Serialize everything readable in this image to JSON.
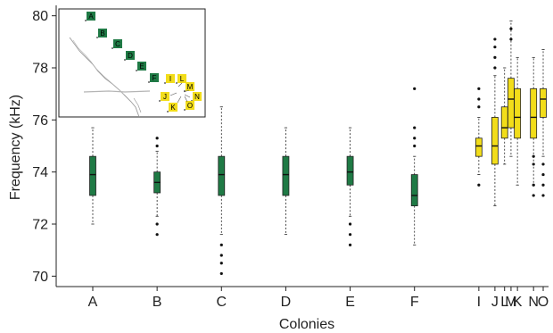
{
  "chart_data": {
    "type": "box",
    "xlabel": "Colonies",
    "ylabel": "Frequency (kHz)",
    "ylim": [
      69.6,
      80.4
    ],
    "yticks": [
      70,
      72,
      74,
      76,
      78,
      80
    ],
    "grid": false,
    "colors": {
      "green": "#1f7a45",
      "yellow": "#f2dd1a"
    },
    "categories": [
      "A",
      "B",
      "C",
      "D",
      "E",
      "F",
      "I",
      "J",
      "L",
      "M",
      "K",
      "N",
      "O"
    ],
    "x": [
      1,
      2,
      3,
      4,
      5,
      6,
      7,
      7.25,
      7.4,
      7.5,
      7.6,
      7.85,
      8
    ],
    "boxes": [
      {
        "label": "A",
        "x": 1,
        "color": "green",
        "whisker_low": 72.0,
        "q1": 73.1,
        "median": 73.9,
        "q3": 74.6,
        "whisker_high": 75.7,
        "outliers": []
      },
      {
        "label": "B",
        "x": 2,
        "color": "green",
        "whisker_low": 72.3,
        "q1": 73.2,
        "median": 73.6,
        "q3": 74.0,
        "whisker_high": 74.8,
        "outliers": [
          75.3,
          75.0,
          72.0,
          71.6
        ]
      },
      {
        "label": "C",
        "x": 3,
        "color": "green",
        "whisker_low": 71.6,
        "q1": 73.1,
        "median": 73.9,
        "q3": 74.6,
        "whisker_high": 76.5,
        "outliers": [
          71.2,
          70.8,
          70.5,
          70.1
        ]
      },
      {
        "label": "D",
        "x": 4,
        "color": "green",
        "whisker_low": 71.6,
        "q1": 73.1,
        "median": 73.9,
        "q3": 74.6,
        "whisker_high": 75.7,
        "outliers": []
      },
      {
        "label": "E",
        "x": 5,
        "color": "green",
        "whisker_low": 72.3,
        "q1": 73.5,
        "median": 74.0,
        "q3": 74.6,
        "whisker_high": 75.7,
        "outliers": [
          72.0,
          71.6,
          71.2
        ]
      },
      {
        "label": "F",
        "x": 6,
        "color": "green",
        "whisker_low": 71.2,
        "q1": 72.7,
        "median": 73.1,
        "q3": 73.9,
        "whisker_high": 74.6,
        "outliers": [
          77.2,
          75.7,
          75.3,
          75.0
        ]
      },
      {
        "label": "I",
        "x": 7,
        "color": "yellow",
        "whisker_low": 73.9,
        "q1": 74.6,
        "median": 75.0,
        "q3": 75.3,
        "whisker_high": 76.1,
        "outliers": [
          77.2,
          76.8,
          76.5,
          73.5
        ]
      },
      {
        "label": "J",
        "x": 7.25,
        "color": "yellow",
        "whisker_low": 72.7,
        "q1": 74.3,
        "median": 75.0,
        "q3": 76.1,
        "whisker_high": 77.7,
        "outliers": [
          79.1,
          78.8,
          78.4,
          78.0
        ]
      },
      {
        "label": "L",
        "x": 7.4,
        "color": "yellow",
        "whisker_low": 74.3,
        "q1": 75.3,
        "median": 75.7,
        "q3": 76.5,
        "whisker_high": 78.0,
        "outliers": []
      },
      {
        "label": "M",
        "x": 7.5,
        "color": "yellow",
        "whisker_low": 74.6,
        "q1": 75.7,
        "median": 76.8,
        "q3": 77.6,
        "whisker_high": 79.8,
        "outliers": [
          79.5,
          79.1
        ]
      },
      {
        "label": "K",
        "x": 7.6,
        "color": "yellow",
        "whisker_low": 73.5,
        "q1": 75.3,
        "median": 76.1,
        "q3": 77.2,
        "whisker_high": 78.4,
        "outliers": []
      },
      {
        "label": "N",
        "x": 7.85,
        "color": "yellow",
        "whisker_low": 73.5,
        "q1": 75.3,
        "median": 76.1,
        "q3": 77.2,
        "whisker_high": 78.4,
        "outliers": [
          73.1,
          73.5,
          74.3,
          74.6
        ]
      },
      {
        "label": "O",
        "x": 8,
        "color": "yellow",
        "whisker_low": 74.6,
        "q1": 76.1,
        "median": 76.8,
        "q3": 77.2,
        "whisker_high": 78.7,
        "outliers": [
          74.3,
          73.9,
          73.5,
          73.1
        ]
      }
    ],
    "inset_map": {
      "labels": [
        "A",
        "B",
        "C",
        "D",
        "E",
        "F",
        "I",
        "L",
        "M",
        "J",
        "N",
        "K",
        "O"
      ],
      "colors": [
        "green",
        "green",
        "green",
        "green",
        "green",
        "green",
        "yellow",
        "yellow",
        "yellow",
        "yellow",
        "yellow",
        "yellow",
        "yellow"
      ]
    }
  }
}
